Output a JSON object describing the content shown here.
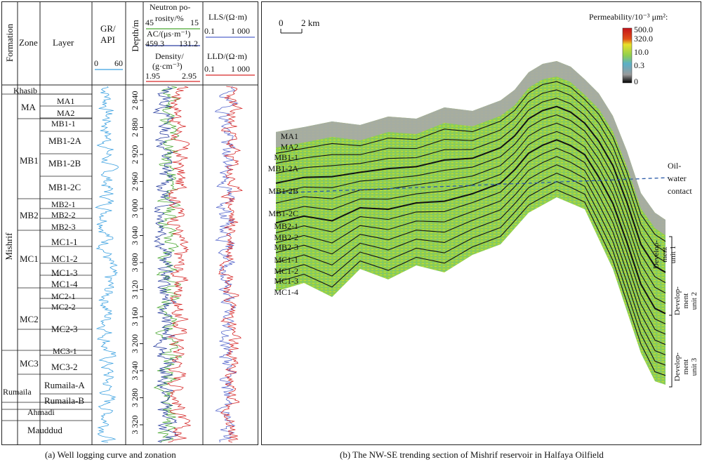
{
  "captions": {
    "left": "(a) Well logging curve and zonation",
    "right": "(b) The NW-SE trending section of Mishrif reservoir in Halfaya Oilfield"
  },
  "log_panel": {
    "headers": {
      "formation": "Formation",
      "zone": "Zone",
      "layer": "Layer",
      "gr_label": "GR/",
      "gr_unit": "API",
      "gr_min": "0",
      "gr_max": "60",
      "depth": "Depth/m",
      "neutron_line1": "Neutron po-",
      "neutron_line2": "rosity/%",
      "neutron_min": "45",
      "neutron_max": "15",
      "ac_label": "AC/(μs·m⁻¹)",
      "ac_min": "459.3",
      "ac_max": "131.2",
      "density_line1": "Density/",
      "density_line2": "(g·cm⁻³)",
      "density_min": "1.95",
      "density_max": "2.95",
      "lls_label": "LLS/(Ω·m)",
      "lls_min": "0.1",
      "lls_max": "1 000",
      "lld_label": "LLD/(Ω·m)",
      "lld_min": "0.1",
      "lld_max": "1 000"
    },
    "formations": {
      "mishrif": "Mishrif",
      "khasib": "Khasib",
      "rumaila": "Rumaila",
      "ahmadi": "Ahmadi",
      "mauddud": "Mauddud"
    },
    "zones": [
      "MA",
      "MB1",
      "MB2",
      "MC1",
      "MC2",
      "MC3"
    ],
    "layers": [
      "MA1",
      "MA2",
      "MB1-1",
      "MB1-2A",
      "MB1-2B",
      "MB1-2C",
      "MB2-1",
      "MB2-2",
      "MB2-3",
      "MC1-1",
      "MC1-2",
      "MC1-3",
      "MC1-4",
      "MC2-1",
      "MC2-2",
      "MC2-3",
      "MC3-1",
      "MC3-2",
      "Rumaila-A",
      "Rumaila-B"
    ],
    "depth_ticks": [
      "2 840",
      "2 880",
      "2 920",
      "2 960",
      "3 000",
      "3 040",
      "3 080",
      "3 120",
      "3 160",
      "3 200",
      "3 240",
      "3 280",
      "3 320"
    ],
    "colors": {
      "gr": "#3aa0e0",
      "neutron": "#4aa832",
      "ac": "#2a3fa0",
      "density": "#d62828",
      "lls": "#5566cc",
      "lld": "#d62828"
    }
  },
  "section_panel": {
    "scale_label": "2 km",
    "scale_zero": "0",
    "legend_title": "Permeability/10⁻³ μm²:",
    "legend_values": [
      "500.0",
      "320.0",
      "10.0",
      "0.3",
      "0"
    ],
    "legend_colors": [
      "#c4131a",
      "#e8e12a",
      "#8fcf4f",
      "#5bb0c8",
      "#9a9a9a",
      "#000000"
    ],
    "layer_labels": [
      "MA1",
      "MA2",
      "MB1-1",
      "MB1-2A",
      "MB1-2B",
      "MB1-2C",
      "MB2-1",
      "MB2-2",
      "MB2-3",
      "MC1-1",
      "MC1-2",
      "MC1-3",
      "MC1-4"
    ],
    "owc_label_1": "Oil-",
    "owc_label_2": "water",
    "owc_label_3": "contact",
    "units": [
      {
        "line1": "Develop-",
        "line2": "ment",
        "line3": "unit 1"
      },
      {
        "line1": "Develop-",
        "line2": "ment",
        "line3": "unit 2"
      },
      {
        "line1": "Develop-",
        "line2": "ment",
        "line3": "unit 3"
      }
    ]
  }
}
